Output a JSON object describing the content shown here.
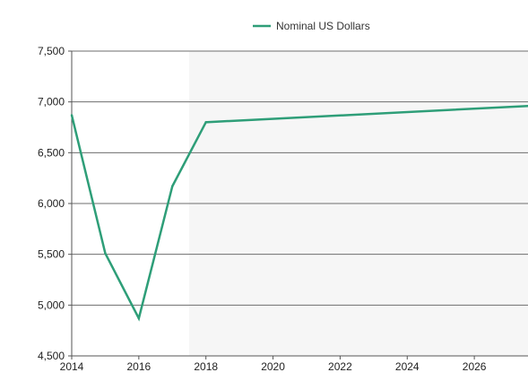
{
  "chart_data": {
    "type": "line",
    "title": "",
    "xlabel": "",
    "ylabel": "",
    "legend_position": "top-center",
    "grid": true,
    "xlim": [
      2014,
      2027.6
    ],
    "ylim": [
      4500,
      7500
    ],
    "x_ticks": [
      2014,
      2016,
      2018,
      2020,
      2022,
      2024,
      2026
    ],
    "x_tick_labels": [
      "2014",
      "2016",
      "2018",
      "2020",
      "2022",
      "2024",
      "2026"
    ],
    "y_ticks": [
      4500,
      5000,
      5500,
      6000,
      6500,
      7000,
      7500
    ],
    "y_tick_labels": [
      "4,500",
      "5,000",
      "5,500",
      "6,000",
      "6,500",
      "7,000",
      "7,500"
    ],
    "shaded_region": {
      "from": 2014,
      "to": 2017.5,
      "color": "#ffffff"
    },
    "series": [
      {
        "name": "Nominal US Dollars",
        "color": "#2e9e78",
        "x": [
          2014,
          2015,
          2016,
          2017,
          2018,
          2027.6
        ],
        "y": [
          6870,
          5510,
          4870,
          6170,
          6800,
          6960
        ]
      }
    ],
    "colors": {
      "plot_background": "#f6f6f6",
      "grid": "#6e6e6e",
      "axis": "#555555"
    }
  }
}
